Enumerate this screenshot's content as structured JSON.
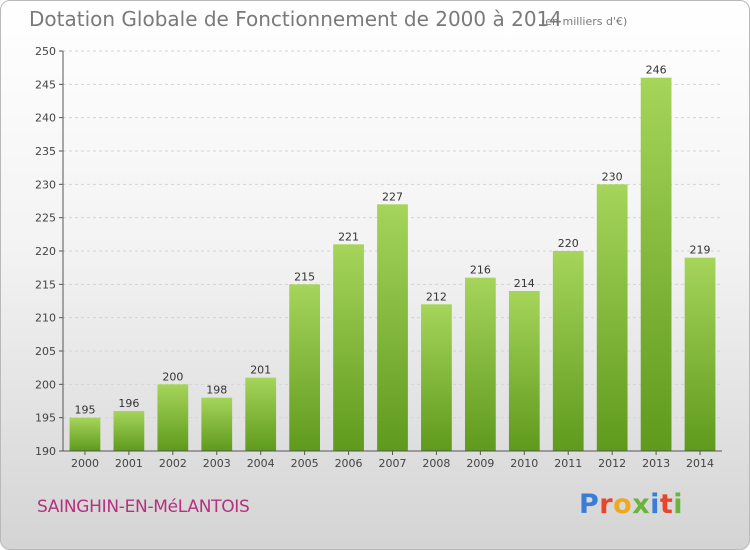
{
  "header": {
    "title": "Dotation Globale de Fonctionnement de 2000 à 2014",
    "subtitle": "(en milliers d'€)"
  },
  "footer": {
    "city": "SAINGHIN-EN-MéLANTOIS",
    "logo_letters": [
      "P",
      "r",
      "o",
      "x",
      "i",
      "t",
      "i"
    ],
    "logo_colors": [
      "#3a7dd6",
      "#e8452c",
      "#f0a81c",
      "#6bb33a",
      "#3a7dd6",
      "#e8452c",
      "#6bb33a"
    ]
  },
  "chart_data": {
    "type": "bar",
    "categories": [
      "2000",
      "2001",
      "2002",
      "2003",
      "2004",
      "2005",
      "2006",
      "2007",
      "2008",
      "2009",
      "2010",
      "2011",
      "2012",
      "2013",
      "2014"
    ],
    "values": [
      195,
      196,
      200,
      198,
      201,
      215,
      221,
      227,
      212,
      216,
      214,
      220,
      230,
      246,
      219
    ],
    "ylim": [
      190,
      250
    ],
    "yticks": [
      190,
      195,
      200,
      205,
      210,
      215,
      220,
      225,
      230,
      235,
      240,
      245,
      250
    ],
    "grid": true,
    "bar_color_light": "#a5d55a",
    "bar_color_dark": "#5f9a1c"
  }
}
